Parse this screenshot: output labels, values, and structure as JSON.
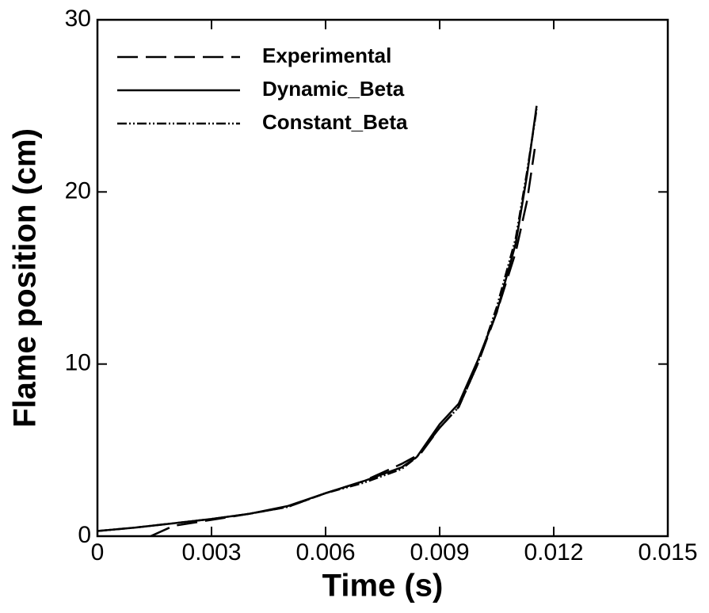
{
  "chart_data": {
    "type": "line",
    "xlabel": "Time (s)",
    "ylabel": "Flame position (cm)",
    "xlim": [
      0,
      0.015
    ],
    "ylim": [
      0,
      30
    ],
    "xticks": [
      0,
      0.003,
      0.006,
      0.009,
      0.012,
      0.015
    ],
    "yticks": [
      0,
      10,
      20,
      30
    ],
    "legend": "upper left",
    "series": [
      {
        "name": "Experimental",
        "color": "#000000",
        "style": "dashed",
        "x": [
          0.0014,
          0.002,
          0.003,
          0.004,
          0.005,
          0.006,
          0.007,
          0.008,
          0.0085,
          0.009,
          0.0095,
          0.01,
          0.0105,
          0.011,
          0.0113,
          0.0115
        ],
        "values": [
          0,
          0.6,
          0.95,
          1.3,
          1.7,
          2.5,
          3.2,
          4.2,
          4.8,
          6.3,
          7.5,
          10,
          13,
          16.5,
          19.5,
          22.5
        ]
      },
      {
        "name": "Dynamic_Beta",
        "color": "#000000",
        "style": "solid",
        "x": [
          0,
          0.001,
          0.002,
          0.003,
          0.004,
          0.005,
          0.006,
          0.007,
          0.008,
          0.0084,
          0.009,
          0.0095,
          0.01,
          0.0105,
          0.011,
          0.0113,
          0.01155
        ],
        "values": [
          0.3,
          0.5,
          0.75,
          1.0,
          1.3,
          1.75,
          2.5,
          3.2,
          4.0,
          4.6,
          6.5,
          7.7,
          10.2,
          13,
          17,
          21,
          25
        ]
      },
      {
        "name": "Constant_Beta",
        "color": "#000000",
        "style": "dashdotdot",
        "x": [
          0,
          0.001,
          0.002,
          0.003,
          0.004,
          0.005,
          0.006,
          0.007,
          0.008,
          0.0084,
          0.009,
          0.0095,
          0.01,
          0.0105,
          0.011,
          0.0113,
          0.01155
        ],
        "values": [
          0.3,
          0.5,
          0.75,
          1.0,
          1.3,
          1.7,
          2.5,
          3.1,
          3.9,
          4.6,
          6.3,
          7.5,
          10.0,
          13.3,
          17.3,
          21.2,
          24.8
        ]
      }
    ]
  }
}
